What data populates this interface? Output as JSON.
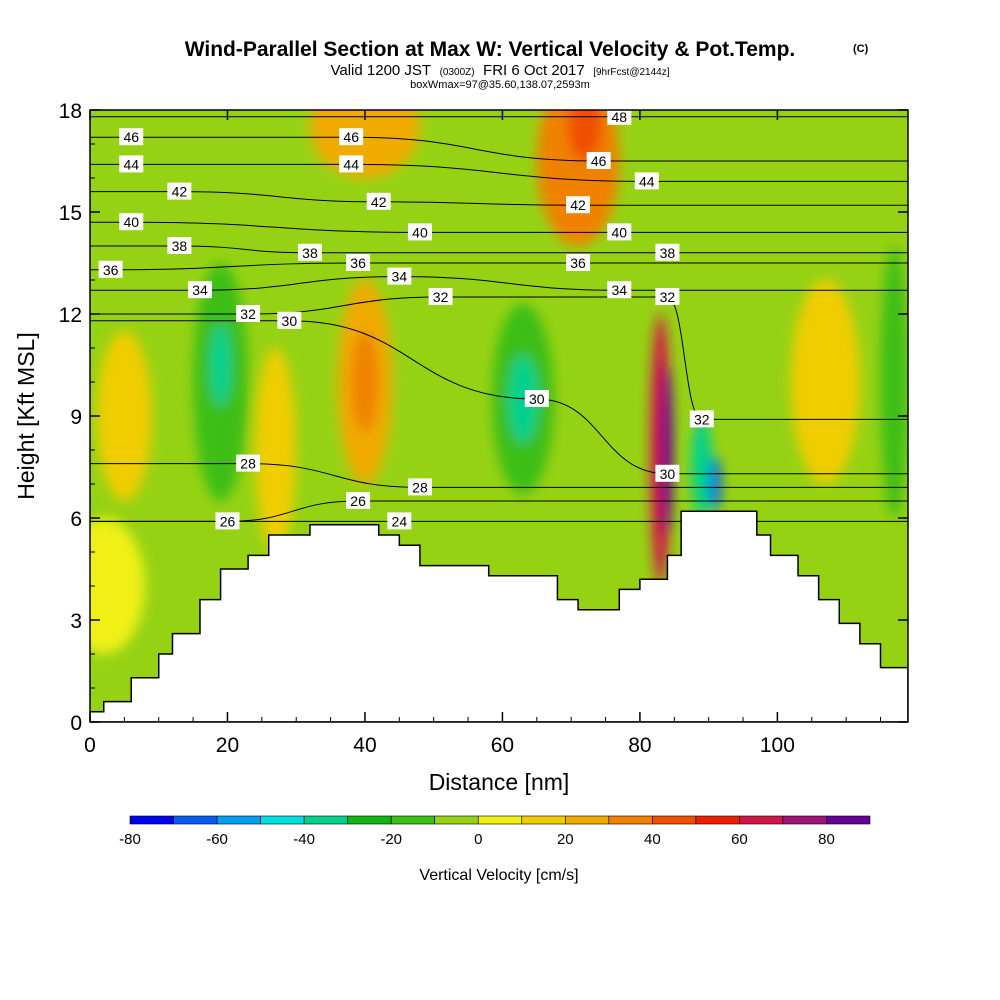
{
  "chart_data": {
    "type": "heatmap",
    "title": "Wind-Parallel Section at Max W: Vertical Velocity & Pot.Temp.",
    "title_suffix": "(C)",
    "subtitle_parts": [
      "Valid 1200 JST",
      "(0300Z)",
      "FRI 6 Oct 2017",
      "[9hrFcst@2144z]"
    ],
    "subtitle2": "boxWmax=97@35.60,138.07,2593m",
    "xlabel": "Distance [nm]",
    "ylabel": "Height [Kft MSL]",
    "xlim": [
      0,
      119
    ],
    "ylim": [
      0,
      18
    ],
    "xticks": [
      0,
      20,
      40,
      60,
      80,
      100
    ],
    "yticks": [
      0,
      3,
      6,
      9,
      12,
      15,
      18
    ],
    "colorbar": {
      "label": "Vertical Velocity [cm/s]",
      "ticks": [
        -80,
        -60,
        -40,
        -20,
        0,
        20,
        40,
        60,
        80
      ],
      "range": [
        -80,
        90
      ],
      "bin": 10,
      "colors": [
        "#0000f0",
        "#0a5af5",
        "#00a0f0",
        "#00e0e0",
        "#00d28c",
        "#14b414",
        "#3cbe14",
        "#96d214",
        "#f0f014",
        "#f0cd00",
        "#f0aa00",
        "#f08200",
        "#f05000",
        "#f01e00",
        "#d21446",
        "#a01478",
        "#640096"
      ]
    },
    "terrain_kft": [
      [
        0,
        0.3
      ],
      [
        2,
        0.3
      ],
      [
        2,
        0.6
      ],
      [
        6,
        0.6
      ],
      [
        6,
        1.3
      ],
      [
        10,
        1.3
      ],
      [
        10,
        2.0
      ],
      [
        12,
        2.0
      ],
      [
        12,
        2.6
      ],
      [
        16,
        2.6
      ],
      [
        16,
        3.6
      ],
      [
        19,
        3.6
      ],
      [
        19,
        4.5
      ],
      [
        23,
        4.5
      ],
      [
        23,
        4.9
      ],
      [
        26,
        4.9
      ],
      [
        26,
        5.5
      ],
      [
        32,
        5.5
      ],
      [
        32,
        5.8
      ],
      [
        42,
        5.8
      ],
      [
        42,
        5.5
      ],
      [
        45,
        5.5
      ],
      [
        45,
        5.2
      ],
      [
        48,
        5.2
      ],
      [
        48,
        4.6
      ],
      [
        58,
        4.6
      ],
      [
        58,
        4.3
      ],
      [
        68,
        4.3
      ],
      [
        68,
        3.6
      ],
      [
        71,
        3.6
      ],
      [
        71,
        3.3
      ],
      [
        77,
        3.3
      ],
      [
        77,
        3.9
      ],
      [
        80,
        3.9
      ],
      [
        80,
        4.2
      ],
      [
        84,
        4.2
      ],
      [
        84,
        4.9
      ],
      [
        86,
        4.9
      ],
      [
        86,
        6.2
      ],
      [
        97,
        6.2
      ],
      [
        97,
        5.5
      ],
      [
        99,
        5.5
      ],
      [
        99,
        4.9
      ],
      [
        103,
        4.9
      ],
      [
        103,
        4.3
      ],
      [
        106,
        4.3
      ],
      [
        106,
        3.6
      ],
      [
        109,
        3.6
      ],
      [
        109,
        2.9
      ],
      [
        112,
        2.9
      ],
      [
        112,
        2.3
      ],
      [
        115,
        2.3
      ],
      [
        115,
        1.6
      ],
      [
        119,
        1.6
      ]
    ],
    "vv_field": [
      {
        "x": 5,
        "y": 9,
        "rx": 4,
        "ry": 2.5,
        "v": 18
      },
      {
        "x": 2,
        "y": 4,
        "rx": 6,
        "ry": 2,
        "v": 0
      },
      {
        "x": 19,
        "y": 10,
        "rx": 4,
        "ry": 3.5,
        "v": -20
      },
      {
        "x": 19,
        "y": 10.5,
        "rx": 1.6,
        "ry": 1.2,
        "v": -40
      },
      {
        "x": 27,
        "y": 8,
        "rx": 3,
        "ry": 3,
        "v": 18
      },
      {
        "x": 40,
        "y": 10,
        "rx": 4,
        "ry": 3,
        "v": 25
      },
      {
        "x": 40,
        "y": 10,
        "rx": 2,
        "ry": 1.5,
        "v": 32
      },
      {
        "x": 63,
        "y": 9.5,
        "rx": 4.5,
        "ry": 2.8,
        "v": -20
      },
      {
        "x": 63,
        "y": 9.5,
        "rx": 2.2,
        "ry": 1.3,
        "v": -40
      },
      {
        "x": 71,
        "y": 16.5,
        "rx": 6,
        "ry": 2.5,
        "v": 30
      },
      {
        "x": 72,
        "y": 17.5,
        "rx": 2.5,
        "ry": 1,
        "v": 48
      },
      {
        "x": 40,
        "y": 17.5,
        "rx": 8,
        "ry": 1.5,
        "v": 20
      },
      {
        "x": 83,
        "y": 8,
        "rx": 1.5,
        "ry": 4,
        "v": 60
      },
      {
        "x": 84,
        "y": 8,
        "rx": 0.8,
        "ry": 2.5,
        "v": 85
      },
      {
        "x": 89,
        "y": 7.5,
        "rx": 1.5,
        "ry": 1.5,
        "v": -40
      },
      {
        "x": 91,
        "y": 7,
        "rx": 0.8,
        "ry": 0.8,
        "v": -70
      },
      {
        "x": 107,
        "y": 10,
        "rx": 5,
        "ry": 3,
        "v": 18
      },
      {
        "x": 117,
        "y": 10,
        "rx": 2,
        "ry": 4,
        "v": -15
      }
    ],
    "theta_labels": [
      {
        "x": 6,
        "y": 17.2,
        "t": "46"
      },
      {
        "x": 38,
        "y": 17.2,
        "t": "46"
      },
      {
        "x": 77,
        "y": 17.8,
        "t": "48"
      },
      {
        "x": 6,
        "y": 16.4,
        "t": "44"
      },
      {
        "x": 38,
        "y": 16.4,
        "t": "44"
      },
      {
        "x": 74,
        "y": 16.5,
        "t": "46"
      },
      {
        "x": 13,
        "y": 15.6,
        "t": "42"
      },
      {
        "x": 42,
        "y": 15.3,
        "t": "42"
      },
      {
        "x": 81,
        "y": 15.9,
        "t": "44"
      },
      {
        "x": 6,
        "y": 14.7,
        "t": "40"
      },
      {
        "x": 48,
        "y": 14.4,
        "t": "40"
      },
      {
        "x": 71,
        "y": 15.2,
        "t": "42"
      },
      {
        "x": 13,
        "y": 14.0,
        "t": "38"
      },
      {
        "x": 32,
        "y": 13.8,
        "t": "38"
      },
      {
        "x": 77,
        "y": 14.4,
        "t": "40"
      },
      {
        "x": 3,
        "y": 13.3,
        "t": "36"
      },
      {
        "x": 39,
        "y": 13.5,
        "t": "36"
      },
      {
        "x": 71,
        "y": 13.5,
        "t": "36"
      },
      {
        "x": 84,
        "y": 13.8,
        "t": "38"
      },
      {
        "x": 16,
        "y": 12.7,
        "t": "34"
      },
      {
        "x": 45,
        "y": 13.1,
        "t": "34"
      },
      {
        "x": 77,
        "y": 12.7,
        "t": "34"
      },
      {
        "x": 23,
        "y": 12.0,
        "t": "32"
      },
      {
        "x": 51,
        "y": 12.5,
        "t": "32"
      },
      {
        "x": 84,
        "y": 12.5,
        "t": "32"
      },
      {
        "x": 29,
        "y": 11.8,
        "t": "30"
      },
      {
        "x": 65,
        "y": 9.5,
        "t": "30"
      },
      {
        "x": 84,
        "y": 7.3,
        "t": "30"
      },
      {
        "x": 89,
        "y": 8.9,
        "t": "32"
      },
      {
        "x": 23,
        "y": 7.6,
        "t": "28"
      },
      {
        "x": 48,
        "y": 6.9,
        "t": "28"
      },
      {
        "x": 39,
        "y": 6.5,
        "t": "26"
      },
      {
        "x": 20,
        "y": 5.9,
        "t": "26"
      },
      {
        "x": 45,
        "y": 5.9,
        "t": "24"
      }
    ]
  }
}
